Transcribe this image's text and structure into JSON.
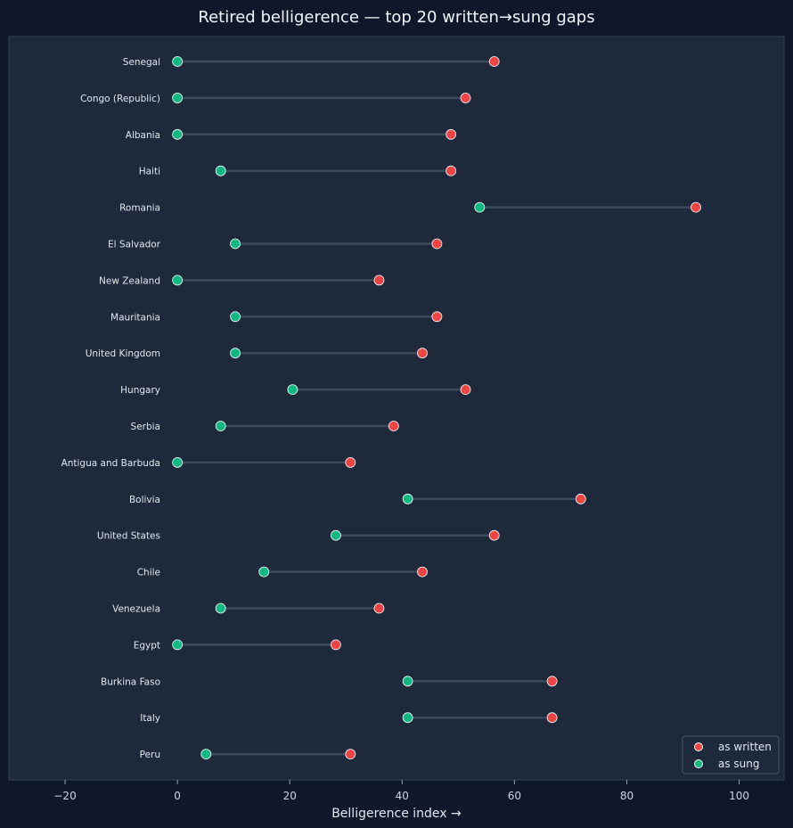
{
  "chart_data": {
    "type": "dumbbell",
    "title": "Retired belligerence — top 20 written→sung gaps",
    "xlabel": "Belligerence index  →",
    "xlim": [
      -30,
      108
    ],
    "xticks": [
      -20,
      0,
      20,
      40,
      60,
      80,
      100
    ],
    "grid": false,
    "legend_position": "bottom-right",
    "series": [
      {
        "name": "as written",
        "color": "#ef4444"
      },
      {
        "name": "as sung",
        "color": "#10b981"
      }
    ],
    "rows": [
      {
        "country": "Senegal",
        "written": 56.4,
        "sung": 0
      },
      {
        "country": "Congo (Republic)",
        "written": 51.3,
        "sung": 0
      },
      {
        "country": "Albania",
        "written": 48.7,
        "sung": 0
      },
      {
        "country": "Haiti",
        "written": 48.7,
        "sung": 7.7
      },
      {
        "country": "Romania",
        "written": 92.3,
        "sung": 53.8
      },
      {
        "country": "El Salvador",
        "written": 46.2,
        "sung": 10.3
      },
      {
        "country": "New Zealand",
        "written": 35.9,
        "sung": 0
      },
      {
        "country": "Mauritania",
        "written": 46.2,
        "sung": 10.3
      },
      {
        "country": "United Kingdom",
        "written": 43.6,
        "sung": 10.3
      },
      {
        "country": "Hungary",
        "written": 51.3,
        "sung": 20.5
      },
      {
        "country": "Serbia",
        "written": 38.5,
        "sung": 7.7
      },
      {
        "country": "Antigua and Barbuda",
        "written": 30.8,
        "sung": 0
      },
      {
        "country": "Bolivia",
        "written": 71.8,
        "sung": 41.0
      },
      {
        "country": "United States",
        "written": 56.4,
        "sung": 28.2
      },
      {
        "country": "Chile",
        "written": 43.6,
        "sung": 15.4
      },
      {
        "country": "Venezuela",
        "written": 35.9,
        "sung": 7.7
      },
      {
        "country": "Egypt",
        "written": 28.2,
        "sung": 0
      },
      {
        "country": "Burkina Faso",
        "written": 66.7,
        "sung": 41.0
      },
      {
        "country": "Italy",
        "written": 66.7,
        "sung": 41.0
      },
      {
        "country": "Peru",
        "written": 30.8,
        "sung": 5.1
      }
    ]
  }
}
